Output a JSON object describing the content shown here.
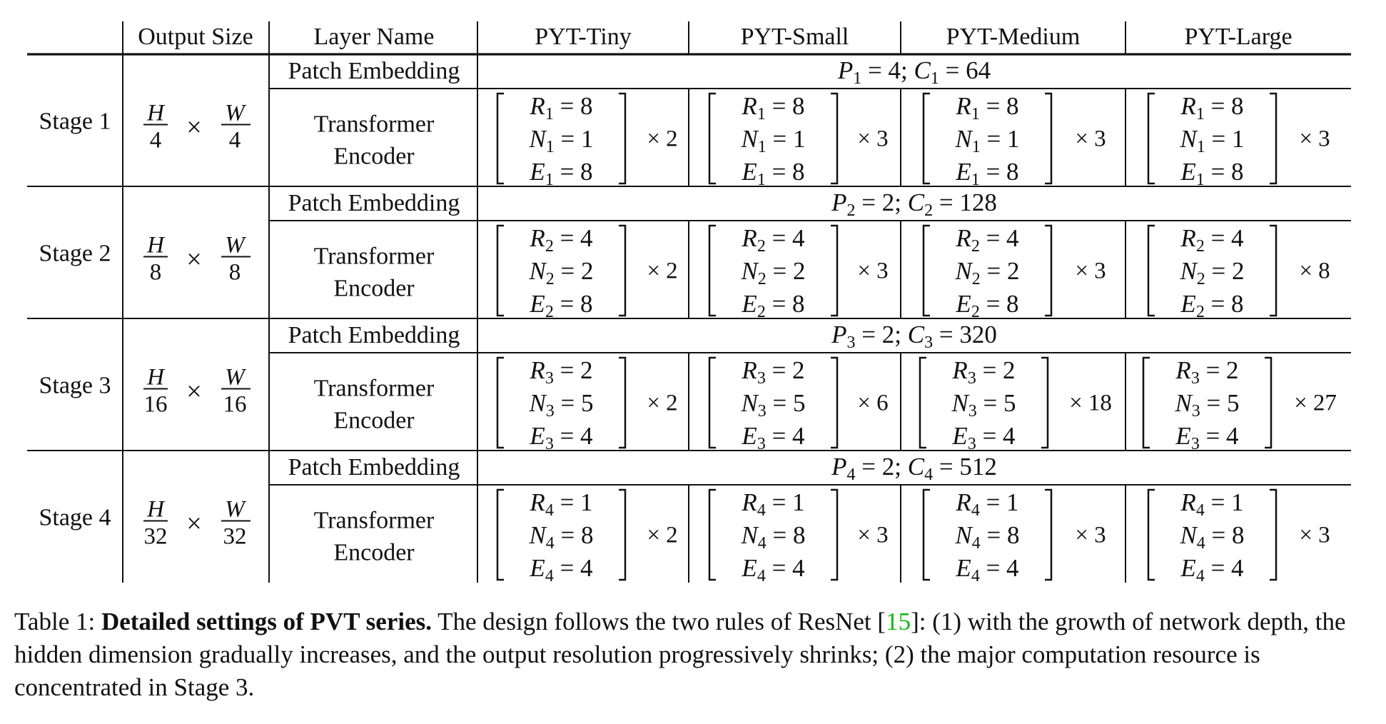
{
  "header": {
    "output_size": "Output Size",
    "layer_name": "Layer Name",
    "models": [
      "PYT-Tiny",
      "PYT-Small",
      "PYT-Medium",
      "PYT-Large"
    ]
  },
  "layer_names": {
    "patch_embedding": "Patch Embedding",
    "transformer_line1": "Transformer",
    "transformer_line2": "Encoder"
  },
  "stages": [
    {
      "label": "Stage 1",
      "h": "H",
      "w": "W",
      "den": "4",
      "times": "×",
      "patch": {
        "P": "P",
        "p_sub": "1",
        "p_val": "4",
        "C": "C",
        "c_sub": "1",
        "c_val": "64"
      },
      "enc": {
        "sub": "1",
        "R": "8",
        "N": "1",
        "E": "8"
      },
      "mult": [
        "× 2",
        "× 3",
        "× 3",
        "× 3"
      ]
    },
    {
      "label": "Stage 2",
      "h": "H",
      "w": "W",
      "den": "8",
      "times": "×",
      "patch": {
        "P": "P",
        "p_sub": "2",
        "p_val": "2",
        "C": "C",
        "c_sub": "2",
        "c_val": "128"
      },
      "enc": {
        "sub": "2",
        "R": "4",
        "N": "2",
        "E": "8"
      },
      "mult": [
        "× 2",
        "× 3",
        "× 3",
        "× 8"
      ]
    },
    {
      "label": "Stage 3",
      "h": "H",
      "w": "W",
      "den": "16",
      "times": "×",
      "patch": {
        "P": "P",
        "p_sub": "3",
        "p_val": "2",
        "C": "C",
        "c_sub": "3",
        "c_val": "320"
      },
      "enc": {
        "sub": "3",
        "R": "2",
        "N": "5",
        "E": "4"
      },
      "mult": [
        "× 2",
        "× 6",
        "× 18",
        "× 27"
      ]
    },
    {
      "label": "Stage 4",
      "h": "H",
      "w": "W",
      "den": "32",
      "times": "×",
      "patch": {
        "P": "P",
        "p_sub": "4",
        "p_val": "2",
        "C": "C",
        "c_sub": "4",
        "c_val": "512"
      },
      "enc": {
        "sub": "4",
        "R": "1",
        "N": "8",
        "E": "4"
      },
      "mult": [
        "× 2",
        "× 3",
        "× 3",
        "× 3"
      ]
    }
  ],
  "caption": {
    "label": "Table 1:",
    "bold": "Detailed settings of PVT series.",
    "text_before_ref": "The design follows the two rules of ResNet [",
    "ref": "15",
    "text_after_ref": "]: (1) with the growth of network depth, the hidden dimension gradually increases, and the output resolution progressively shrinks; (2) the major computation resource is concentrated in Stage 3."
  }
}
